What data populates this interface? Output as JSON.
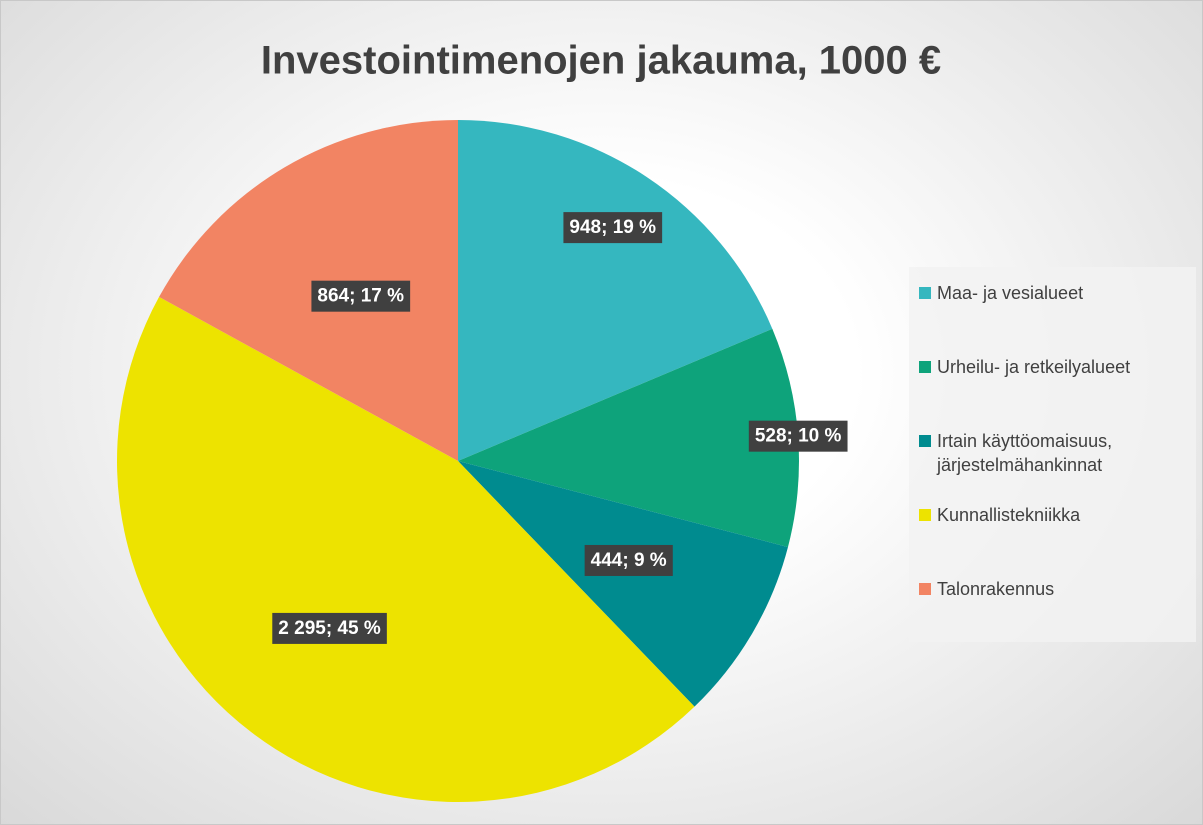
{
  "chart_data": {
    "type": "pie",
    "title": "Investointimenojen jakauma, 1000 €",
    "categories": [
      "Maa- ja vesialueet",
      "Urheilu- ja retkeilyalueet",
      "Irtain käyttöomaisuus, järjestelmähankinnat",
      "Kunnallistekniikka",
      "Talonrakennus"
    ],
    "values": [
      948,
      528,
      444,
      2295,
      864
    ],
    "value_labels": [
      "948; 19 %",
      "528; 10 %",
      "444; 9 %",
      "2 295; 45 %",
      "864; 17 %"
    ],
    "colors": [
      "#35b7bf",
      "#0ea37b",
      "#008b8f",
      "#ede300",
      "#f28463"
    ],
    "legend": "right"
  }
}
